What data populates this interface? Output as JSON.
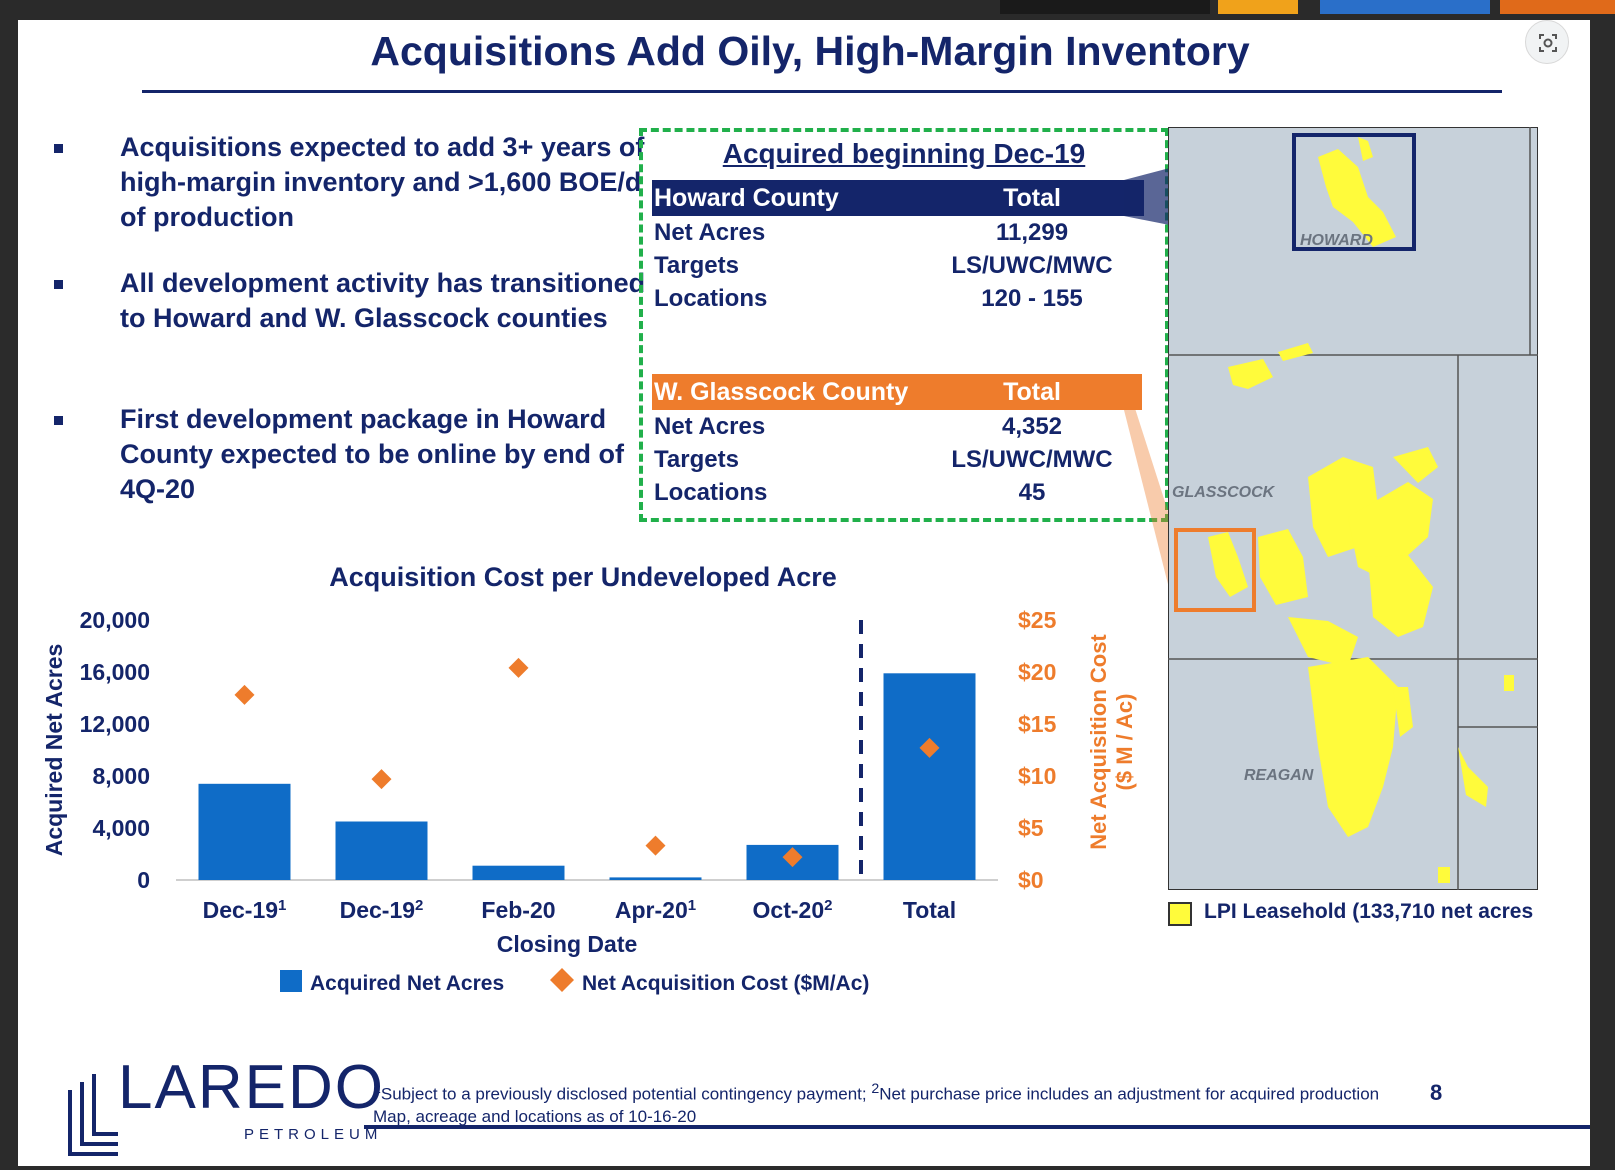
{
  "slide": {
    "title": "Acquisitions Add Oily, High-Margin Inventory",
    "page_number": "8"
  },
  "bullets": [
    "Acquisitions expected to add 3+ years of high-margin inventory and >1,600 BOE/d of production",
    "All development activity has transitioned to Howard and W. Glasscock counties",
    "First development package in Howard County expected to be online by end of 4Q-20"
  ],
  "acquired": {
    "title": "Acquired beginning Dec-19",
    "howard": {
      "header": [
        "Howard County",
        "Total"
      ],
      "rows": [
        [
          "Net Acres",
          "11,299"
        ],
        [
          "Targets",
          "LS/UWC/MWC"
        ],
        [
          "Locations",
          "120 - 155"
        ]
      ]
    },
    "glasscock": {
      "header": [
        "W. Glasscock County",
        "Total"
      ],
      "rows": [
        [
          "Net Acres",
          "4,352"
        ],
        [
          "Targets",
          "LS/UWC/MWC"
        ],
        [
          "Locations",
          "45"
        ]
      ]
    }
  },
  "map": {
    "labels": [
      "HOWARD",
      "GLASSCOCK",
      "REAGAN"
    ],
    "legend": "LPI Leasehold (133,710 net acres",
    "colors": {
      "leasehold": "#fffb3b",
      "background": "#c9d3dc",
      "howard_box": "#14256a",
      "glasscock_box": "#ee7c2c"
    }
  },
  "chart_data": {
    "type": "bar",
    "title": "Acquisition Cost per Undeveloped Acre",
    "xlabel": "Closing Date",
    "ylabel": "Acquired Net Acres",
    "y2label_lines": [
      "Net Acquisition Cost",
      "($ M / Ac)"
    ],
    "categories": [
      {
        "label": "Dec-19",
        "sup": "1"
      },
      {
        "label": "Dec-19",
        "sup": "2"
      },
      {
        "label": "Feb-20",
        "sup": ""
      },
      {
        "label": "Apr-20",
        "sup": "1"
      },
      {
        "label": "Oct-20",
        "sup": "2"
      },
      {
        "label": "Total",
        "sup": ""
      }
    ],
    "ylim": [
      0,
      20000
    ],
    "yticks": [
      "20,000",
      "16,000",
      "12,000",
      "8,000",
      "4,000",
      "0"
    ],
    "y2lim": [
      0,
      25
    ],
    "y2ticks": [
      "$25",
      "$20",
      "$15",
      "$10",
      "$5",
      "$0"
    ],
    "series": [
      {
        "name": "Acquired Net Acres",
        "kind": "bar",
        "color": "#0f6cc7",
        "values": [
          7400,
          4500,
          1100,
          200,
          2700,
          15900
        ]
      },
      {
        "name": "Net Acquisition Cost ($M/Ac)",
        "kind": "scatter",
        "marker": "diamond",
        "color": "#ee7c2c",
        "values": [
          17.8,
          9.7,
          20.4,
          3.3,
          2.2,
          12.7
        ]
      }
    ],
    "legend_position": "bottom",
    "divider_after_index": 4
  }
}
